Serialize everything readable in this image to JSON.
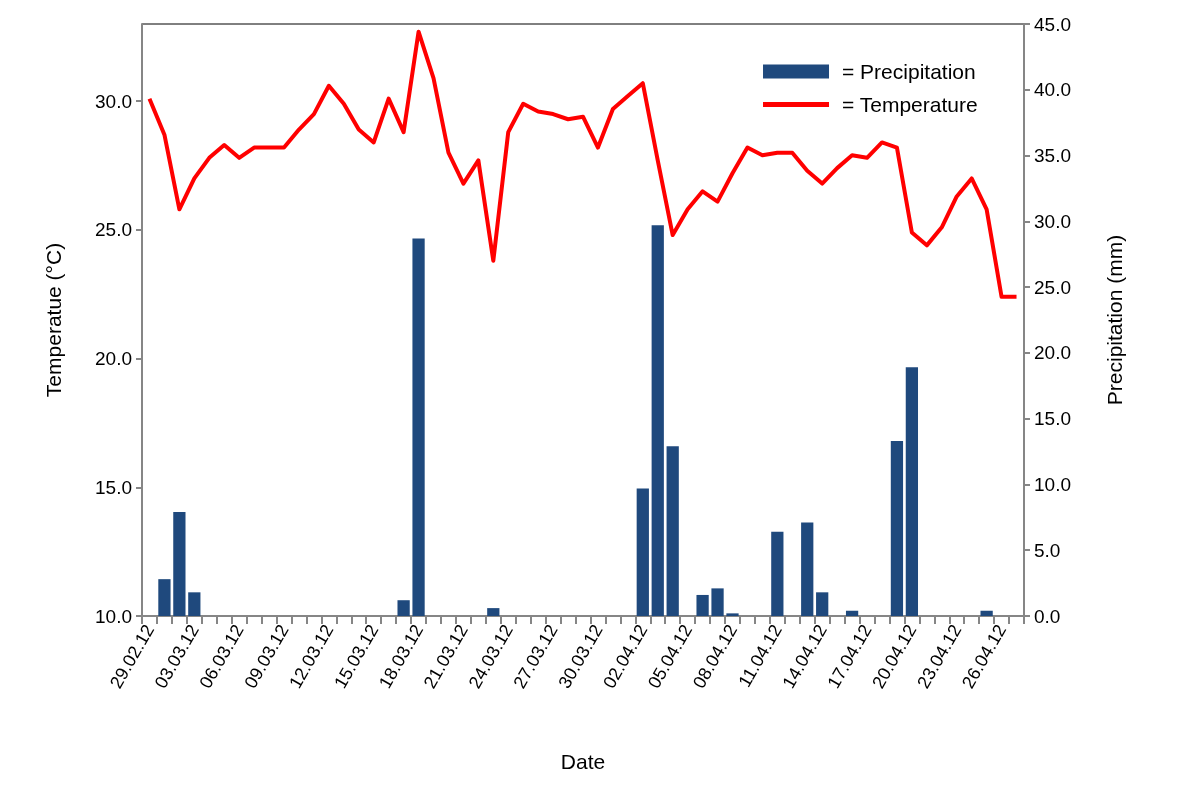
{
  "chart_data": {
    "type": "bar",
    "xlabel": "Date",
    "ylabel": "Temperatue (°C)",
    "y2label": "Precipitation (mm)",
    "categories": [
      "29.02.12",
      null,
      null,
      "03.03.12",
      null,
      null,
      "06.03.12",
      null,
      null,
      "09.03.12",
      null,
      null,
      "12.03.12",
      null,
      null,
      "15.03.12",
      null,
      null,
      "18.03.12",
      null,
      null,
      "21.03.12",
      null,
      null,
      "24.03.12",
      null,
      null,
      "27.03.12",
      null,
      null,
      "30.03.12",
      null,
      null,
      "02.04.12",
      null,
      null,
      "05.04.12",
      null,
      null,
      "08.04.12",
      null,
      null,
      "11.04.12",
      null,
      null,
      "14.04.12",
      null,
      null,
      "17.04.12",
      null,
      null,
      "20.04.12",
      null,
      null,
      "23.04.12",
      null,
      null,
      "26.04.12",
      null
    ],
    "series": [
      {
        "name": "= Precipitation",
        "axis": "y2",
        "color": "#1f497d",
        "values": [
          0,
          2.8,
          7.9,
          1.8,
          0,
          0,
          0,
          0,
          0,
          0,
          0,
          0,
          0,
          0,
          0,
          0,
          0,
          1.2,
          28.7,
          0,
          0,
          0,
          0,
          0.6,
          0,
          0,
          0,
          0,
          0,
          0,
          0,
          0,
          0,
          9.7,
          29.7,
          12.9,
          0,
          1.6,
          2.1,
          0.2,
          0,
          0,
          6.4,
          0,
          7.1,
          1.8,
          0,
          0.4,
          0,
          0,
          13.3,
          18.9,
          0,
          0,
          0,
          0,
          0.4,
          0,
          0
        ]
      },
      {
        "name": "= Temperature",
        "type": "line",
        "color": "#ff0000",
        "values": [
          30.1,
          28.7,
          25.8,
          27.0,
          27.8,
          28.3,
          27.8,
          28.2,
          28.2,
          28.2,
          28.9,
          29.5,
          30.6,
          29.9,
          28.9,
          28.4,
          30.1,
          28.8,
          32.7,
          30.9,
          28.0,
          26.8,
          27.7,
          23.8,
          28.8,
          29.9,
          29.6,
          29.5,
          29.3,
          29.4,
          28.2,
          29.7,
          30.2,
          30.7,
          27.7,
          24.8,
          25.8,
          26.5,
          26.1,
          27.2,
          28.2,
          27.9,
          28.0,
          28.0,
          27.3,
          26.8,
          27.4,
          27.9,
          27.8,
          28.4,
          28.2,
          24.9,
          24.4,
          25.1,
          26.3,
          27.0,
          25.8,
          22.4,
          22.4
        ]
      }
    ],
    "ylim": [
      10,
      33
    ],
    "yticks": [
      {
        "value": 10,
        "label": "10.0"
      },
      {
        "value": 15,
        "label": "15.0"
      },
      {
        "value": 20,
        "label": "20.0"
      },
      {
        "value": 25,
        "label": "25.0"
      },
      {
        "value": 30,
        "label": "30.0"
      }
    ],
    "y2lim": [
      0,
      45
    ],
    "y2ticks": [
      {
        "value": 0,
        "label": "0.0"
      },
      {
        "value": 5,
        "label": "5.0"
      },
      {
        "value": 10,
        "label": "10.0"
      },
      {
        "value": 15,
        "label": "15.0"
      },
      {
        "value": 20,
        "label": "20.0"
      },
      {
        "value": 25,
        "label": "25.0"
      },
      {
        "value": 30,
        "label": "30.0"
      },
      {
        "value": 35,
        "label": "35.0"
      },
      {
        "value": 40,
        "label": "40.0"
      },
      {
        "value": 45,
        "label": "45.0"
      }
    ],
    "legend": "top right",
    "grid": false
  }
}
